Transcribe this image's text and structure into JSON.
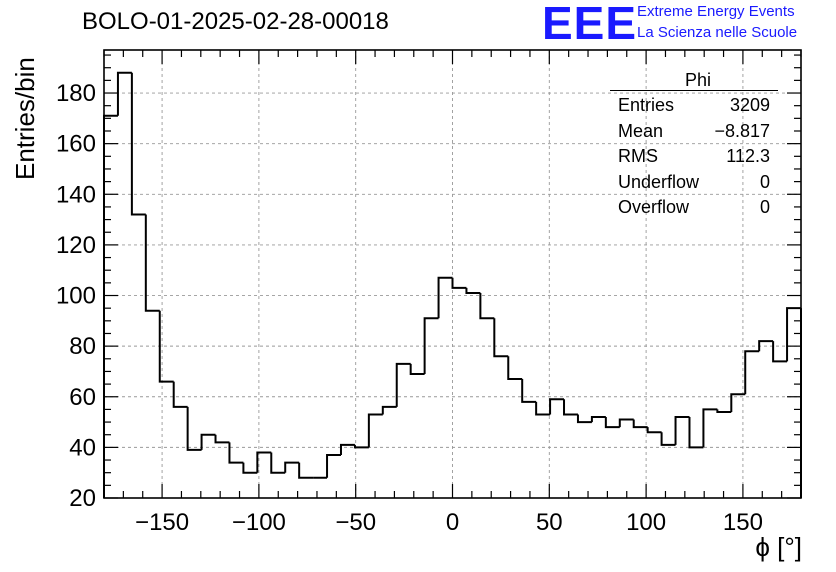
{
  "title": "BOLO-01-2025-02-28-00018",
  "logo": {
    "mark": "EEE",
    "line1": "Extreme Energy Events",
    "line2": "La Scienza nelle Scuole"
  },
  "stats": {
    "name": "Phi",
    "rows": [
      {
        "label": "Entries",
        "value": "3209"
      },
      {
        "label": "Mean",
        "value": "−8.817"
      },
      {
        "label": "RMS",
        "value": "112.3"
      },
      {
        "label": "Underflow",
        "value": "0"
      },
      {
        "label": "Overflow",
        "value": "0"
      }
    ]
  },
  "chart_data": {
    "type": "bar",
    "title": "BOLO-01-2025-02-28-00018",
    "xlabel": "ϕ [°]",
    "ylabel": "Entries/bin",
    "xlim": [
      -180,
      180
    ],
    "ylim": [
      20,
      197
    ],
    "xticks": [
      -150,
      -100,
      -50,
      0,
      50,
      100,
      150
    ],
    "yticks": [
      20,
      40,
      60,
      80,
      100,
      120,
      140,
      160,
      180
    ],
    "grid": true,
    "bin_width": 7.2,
    "bin_edges_start": -180,
    "values": [
      171,
      188,
      132,
      94,
      66,
      56,
      39,
      45,
      42,
      34,
      30,
      38,
      30,
      34,
      28,
      28,
      37,
      41,
      40,
      53,
      56,
      73,
      69,
      91,
      107,
      103,
      101,
      91,
      76,
      67,
      58,
      53,
      59,
      53,
      50,
      52,
      48,
      51,
      48,
      46,
      41,
      52,
      40,
      55,
      54,
      61,
      78,
      82,
      74,
      95
    ],
    "line_color": "#000000"
  }
}
